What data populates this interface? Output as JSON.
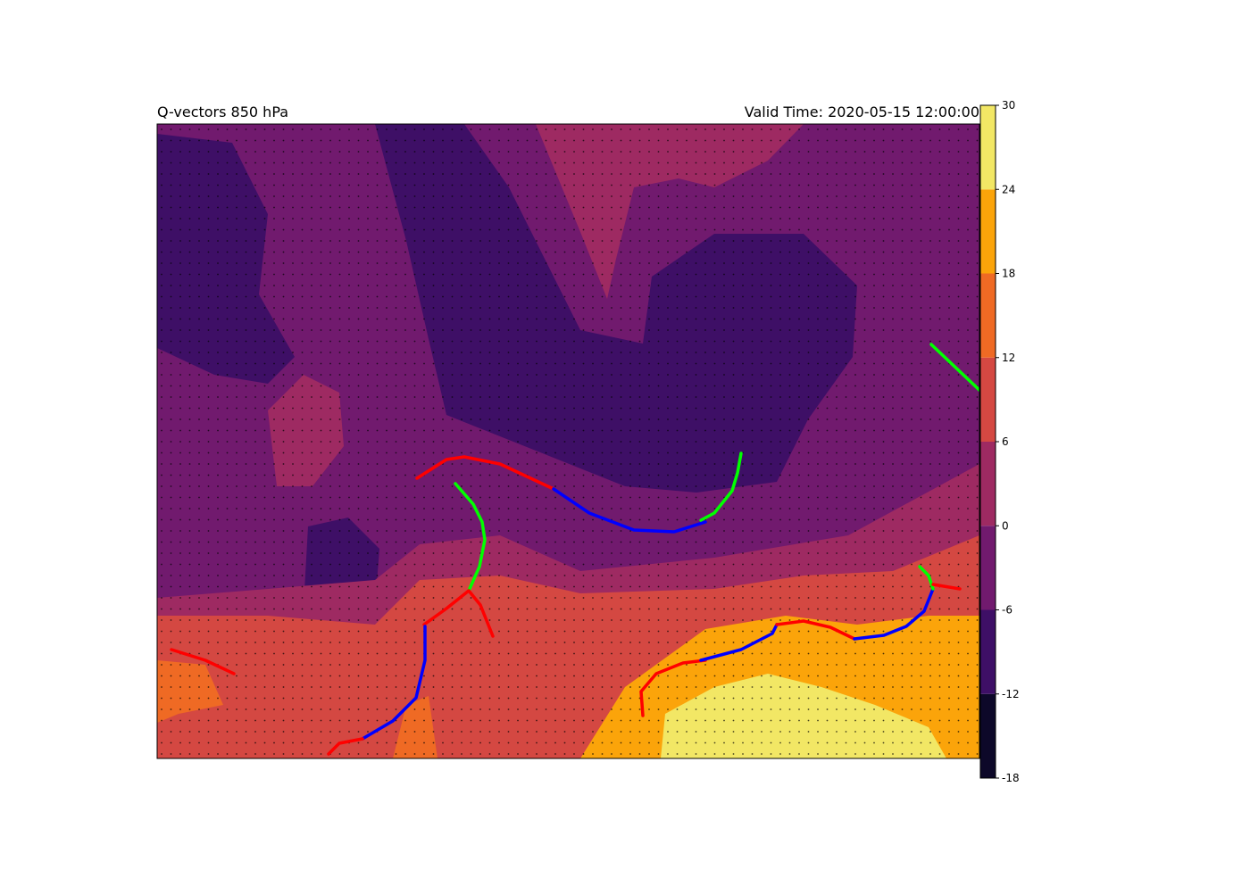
{
  "title_left": "Q-vectors 850 hPa",
  "title_right": "Valid Time: 2020-05-15 12:00:00",
  "colorbar": {
    "lim": [
      -18,
      30
    ],
    "ticks": [
      -18,
      -12,
      -6,
      0,
      6,
      12,
      18,
      24,
      30
    ],
    "colors": [
      "#0d0829",
      "#3e0f66",
      "#711a6e",
      "#9e2a62",
      "#d44842",
      "#ef6a24",
      "#fba40a",
      "#f2e765"
    ]
  }
}
